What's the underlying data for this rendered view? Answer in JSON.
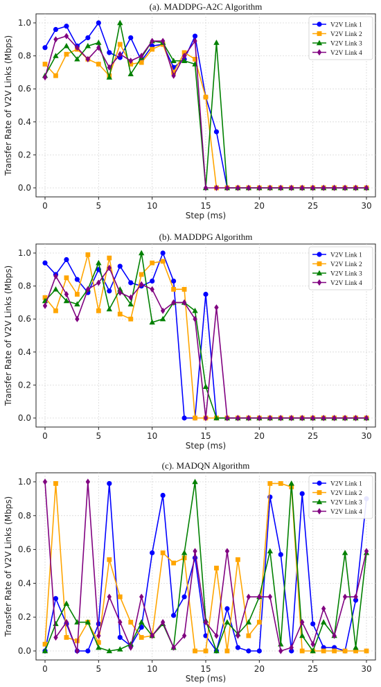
{
  "colors": {
    "link1": "#0000ff",
    "link2": "#ffa500",
    "link3": "#008000",
    "link4": "#800080"
  },
  "markers": {
    "link1": "circle",
    "link2": "square",
    "link3": "triangle",
    "link4": "diamond"
  },
  "chart_data": [
    {
      "type": "line",
      "title": "(a). MADDPG-A2C Algorithm",
      "xlabel": "Step (ms)",
      "ylabel": "Transfer Rate of V2V Links (Mbps)",
      "xlim": [
        0,
        30
      ],
      "ylim": [
        0,
        1.0
      ],
      "xticks": [
        "0",
        "5",
        "10",
        "15",
        "20",
        "25",
        "30"
      ],
      "yticks": [
        "0.0",
        "0.2",
        "0.4",
        "0.6",
        "0.8",
        "1.0"
      ],
      "grid": true,
      "legend": "top-right",
      "x": [
        0,
        1,
        2,
        3,
        4,
        5,
        6,
        7,
        8,
        9,
        10,
        11,
        12,
        13,
        14,
        15,
        16,
        17,
        18,
        19,
        20,
        21,
        22,
        23,
        24,
        25,
        26,
        27,
        28,
        29,
        30
      ],
      "series": [
        {
          "name": "V2V Link 1",
          "key": "link1",
          "values": [
            0.85,
            0.96,
            0.98,
            0.86,
            0.91,
            1.0,
            0.82,
            0.79,
            0.91,
            0.77,
            0.86,
            0.87,
            0.73,
            0.78,
            0.92,
            0.55,
            0.34,
            0,
            0,
            0,
            0,
            0,
            0,
            0,
            0,
            0,
            0,
            0,
            0,
            0,
            0
          ]
        },
        {
          "name": "V2V Link 2",
          "key": "link2",
          "values": [
            0.75,
            0.68,
            0.81,
            0.84,
            0.78,
            0.75,
            0.68,
            0.87,
            0.75,
            0.76,
            0.84,
            0.87,
            0.7,
            0.82,
            0.78,
            0.55,
            0,
            0,
            0,
            0,
            0,
            0,
            0,
            0,
            0,
            0,
            0,
            0,
            0,
            0,
            0
          ]
        },
        {
          "name": "V2V Link 3",
          "key": "link3",
          "values": [
            0.68,
            0.8,
            0.86,
            0.78,
            0.86,
            0.88,
            0.67,
            1.0,
            0.69,
            0.79,
            0.89,
            0.88,
            0.77,
            0.77,
            0.75,
            0,
            0.88,
            0,
            0,
            0,
            0,
            0,
            0,
            0,
            0,
            0,
            0,
            0,
            0,
            0,
            0
          ]
        },
        {
          "name": "V2V Link 4",
          "key": "link4",
          "values": [
            0.67,
            0.9,
            0.92,
            0.85,
            0.78,
            0.85,
            0.73,
            0.81,
            0.77,
            0.8,
            0.89,
            0.89,
            0.68,
            0.8,
            0.89,
            0,
            0,
            0,
            0,
            0,
            0,
            0,
            0,
            0,
            0,
            0,
            0,
            0,
            0,
            0,
            0
          ]
        }
      ]
    },
    {
      "type": "line",
      "title": "(b). MADDPG Algorithm",
      "xlabel": "Step (ms)",
      "ylabel": "Transfer Rate of V2V Links (Mbps)",
      "xlim": [
        0,
        30
      ],
      "ylim": [
        0,
        1.0
      ],
      "xticks": [
        "0",
        "5",
        "10",
        "15",
        "20",
        "25",
        "30"
      ],
      "yticks": [
        "0.0",
        "0.2",
        "0.4",
        "0.6",
        "0.8",
        "1.0"
      ],
      "grid": true,
      "legend": "top-right",
      "x": [
        0,
        1,
        2,
        3,
        4,
        5,
        6,
        7,
        8,
        9,
        10,
        11,
        12,
        13,
        14,
        15,
        16,
        17,
        18,
        19,
        20,
        21,
        22,
        23,
        24,
        25,
        26,
        27,
        28,
        29,
        30
      ],
      "series": [
        {
          "name": "V2V Link 1",
          "key": "link1",
          "values": [
            0.94,
            0.87,
            0.96,
            0.84,
            0.76,
            0.9,
            0.77,
            0.92,
            0.82,
            0.8,
            0.83,
            1.0,
            0.83,
            0,
            0,
            0.75,
            0,
            0,
            0,
            0,
            0,
            0,
            0,
            0,
            0,
            0,
            0,
            0,
            0,
            0,
            0
          ]
        },
        {
          "name": "V2V Link 2",
          "key": "link2",
          "values": [
            0.73,
            0.65,
            0.85,
            0.75,
            0.99,
            0.65,
            0.97,
            0.63,
            0.6,
            0.87,
            0.94,
            0.95,
            0.78,
            0.78,
            0,
            0,
            0,
            0,
            0,
            0,
            0,
            0,
            0,
            0,
            0,
            0,
            0,
            0,
            0,
            0,
            0
          ]
        },
        {
          "name": "V2V Link 3",
          "key": "link3",
          "values": [
            0.71,
            0.78,
            0.71,
            0.69,
            0.78,
            0.94,
            0.66,
            0.78,
            0.69,
            1.0,
            0.58,
            0.6,
            0.7,
            0.7,
            0.65,
            0.19,
            0,
            0,
            0,
            0,
            0,
            0,
            0,
            0,
            0,
            0,
            0,
            0,
            0,
            0,
            0
          ]
        },
        {
          "name": "V2V Link 4",
          "key": "link4",
          "values": [
            0.68,
            0.86,
            0.75,
            0.6,
            0.78,
            0.82,
            0.91,
            0.76,
            0.73,
            0.81,
            0.78,
            0.65,
            0.7,
            0.7,
            0.6,
            0,
            0.67,
            0,
            0,
            0,
            0,
            0,
            0,
            0,
            0,
            0,
            0,
            0,
            0,
            0,
            0
          ]
        }
      ]
    },
    {
      "type": "line",
      "title": "(c). MADQN Algorithm",
      "xlabel": "Step (ms)",
      "ylabel": "Transfer Rate of V2V Links (Mbps)",
      "xlim": [
        0,
        30
      ],
      "ylim": [
        0,
        1.0
      ],
      "xticks": [
        "0",
        "5",
        "10",
        "15",
        "20",
        "25",
        "30"
      ],
      "yticks": [
        "0.0",
        "0.2",
        "0.4",
        "0.6",
        "0.8",
        "1.0"
      ],
      "grid": true,
      "legend": "top-right",
      "x": [
        0,
        1,
        2,
        3,
        4,
        5,
        6,
        7,
        8,
        9,
        10,
        11,
        12,
        13,
        14,
        15,
        16,
        17,
        18,
        19,
        20,
        21,
        22,
        23,
        24,
        25,
        26,
        27,
        28,
        29,
        30
      ],
      "series": [
        {
          "name": "V2V Link 1",
          "key": "link1",
          "values": [
            0.0,
            0.31,
            0.16,
            0.0,
            0.0,
            0.16,
            0.99,
            0.08,
            0.03,
            0.14,
            0.58,
            0.92,
            0.21,
            0.32,
            0.55,
            0.09,
            0.0,
            0.25,
            0.02,
            0.0,
            0.0,
            0.91,
            0.57,
            0.0,
            0.93,
            0.16,
            0.02,
            0.02,
            0.0,
            0.3,
            0.9
          ]
        },
        {
          "name": "V2V Link 2",
          "key": "link2",
          "values": [
            0.04,
            0.99,
            0.08,
            0.06,
            0.17,
            0.05,
            0.54,
            0.32,
            0.17,
            0.08,
            0.09,
            0.58,
            0.52,
            0.55,
            0.0,
            0.0,
            0.49,
            0.0,
            0.54,
            0.09,
            0.17,
            0.99,
            0.99,
            0.97,
            0.0,
            0.0,
            0.0,
            0.0,
            0.0,
            0.0,
            0.0
          ]
        },
        {
          "name": "V2V Link 3",
          "key": "link3",
          "values": [
            0.0,
            0.16,
            0.28,
            0.17,
            0.17,
            0.02,
            0.0,
            0.01,
            0.04,
            0.17,
            0.09,
            0.16,
            0.02,
            0.58,
            1.0,
            0.18,
            0.0,
            0.17,
            0.1,
            0.17,
            0.32,
            0.59,
            0.04,
            0.99,
            0.09,
            0.0,
            0.17,
            0.09,
            0.58,
            0.02,
            0.58
          ]
        },
        {
          "name": "V2V Link 4",
          "key": "link4",
          "values": [
            1.0,
            0.08,
            0.17,
            0.0,
            1.0,
            0.09,
            0.32,
            0.17,
            0.02,
            0.32,
            0.09,
            0.17,
            0.02,
            0.09,
            0.59,
            0.17,
            0.09,
            0.59,
            0.09,
            0.32,
            0.32,
            0.32,
            0.0,
            0.02,
            0.17,
            0.04,
            0.25,
            0.09,
            0.32,
            0.32,
            0.59
          ]
        }
      ]
    }
  ]
}
